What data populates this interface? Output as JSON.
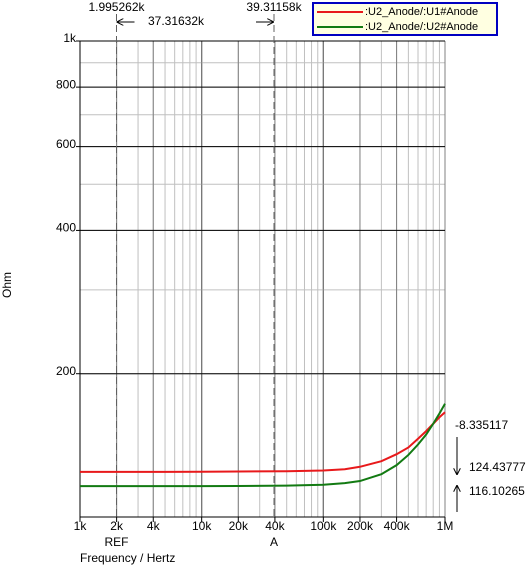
{
  "chart_data": {
    "type": "line",
    "x_label": "Frequency / Hertz",
    "y_label": "Ohm",
    "x": [
      1000,
      2000,
      5000,
      10000,
      20000,
      50000,
      100000,
      150000,
      200000,
      300000,
      400000,
      500000,
      600000,
      700000,
      800000,
      900000,
      1000000
    ],
    "series": [
      {
        "name": ":U2_Anode/:U1#Anode",
        "color": "#e8191b",
        "values": [
          124.4,
          124.4,
          124.4,
          124.5,
          124.6,
          124.8,
          125.2,
          126,
          127.5,
          131,
          135.5,
          140,
          146,
          151.5,
          157,
          162,
          166
        ]
      },
      {
        "name": ":U2_Anode/:U2#Anode",
        "color": "#127a12",
        "values": [
          116.1,
          116.1,
          116.1,
          116.1,
          116.2,
          116.4,
          116.9,
          117.8,
          119,
          123,
          128.5,
          135,
          142,
          149,
          157,
          165,
          173
        ]
      }
    ],
    "xscale": "log",
    "yscale": "log",
    "xlim": [
      1000,
      1000000
    ],
    "ylim": [
      100,
      1000
    ],
    "xticks": [
      {
        "value": 1000,
        "label": "1k"
      },
      {
        "value": 2000,
        "label": "2k"
      },
      {
        "value": 4000,
        "label": "4k"
      },
      {
        "value": 10000,
        "label": "10k"
      },
      {
        "value": 20000,
        "label": "20k"
      },
      {
        "value": 40000,
        "label": "40k"
      },
      {
        "value": 100000,
        "label": "100k"
      },
      {
        "value": 200000,
        "label": "200k"
      },
      {
        "value": 400000,
        "label": "400k"
      },
      {
        "value": 1000000,
        "label": "1M"
      }
    ],
    "yticks": [
      {
        "value": 1000,
        "label": "1k"
      },
      800,
      600,
      400,
      200
    ],
    "grid": true,
    "legend": "top-right",
    "cursors": [
      {
        "name": "REF",
        "x": {
          "value": 1995.262,
          "label": "1.995262k"
        }
      },
      {
        "name": "A",
        "x": {
          "value": 39311.58,
          "label": "39.31158k"
        }
      }
    ],
    "cursor_delta": "37.31632k",
    "readouts": [
      "-8.335117",
      "124.43777",
      "116.10265"
    ]
  }
}
